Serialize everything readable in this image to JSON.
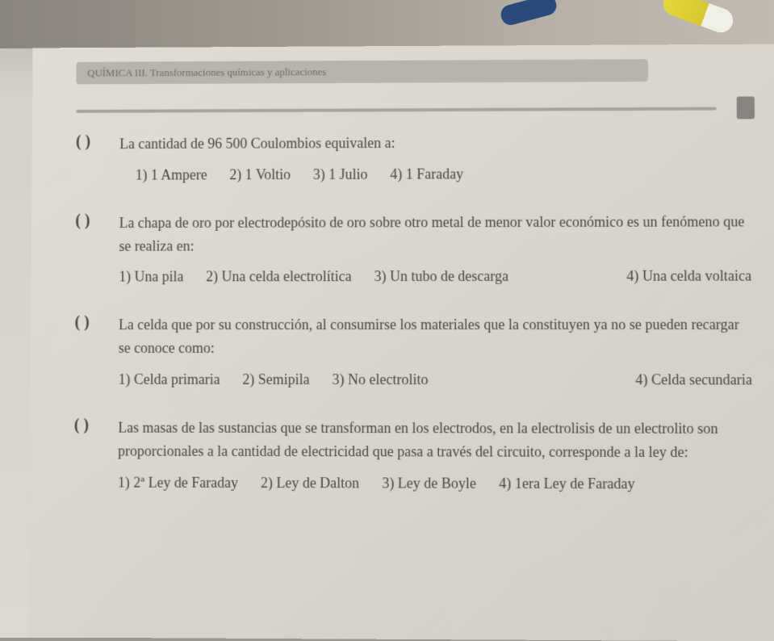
{
  "header": {
    "subject_label": "QUÍMICA III. Transformaciones químicas y aplicaciones"
  },
  "questions": [
    {
      "paren": "(     )",
      "text": "La cantidad de 96 500 Coulombios equivalen a:",
      "options": [
        "1) 1 Ampere",
        "2) 1 Voltio",
        "3) 1 Julio",
        "4) 1 Faraday"
      ]
    },
    {
      "paren": "(     )",
      "text": "La chapa de oro por electrodepósito de oro sobre otro metal de menor valor económico es un fenómeno que se realiza en:",
      "options": [
        "1) Una pila",
        "2) Una celda electrolítica",
        "3) Un tubo de descarga",
        "4) Una celda voltaica"
      ]
    },
    {
      "paren": "(     )",
      "text": "La celda que por su construcción, al consumirse los materiales que la constituyen ya no se pueden recargar se conoce como:",
      "options": [
        "1) Celda primaria",
        "2) Semipila",
        "3) No electrolito",
        "4) Celda secundaria"
      ]
    },
    {
      "paren": "(     )",
      "text": "Las masas de las sustancias que se transforman en los electrodos, en la electrolisis de un electrolito son proporcionales a la cantidad de electricidad que pasa a través del circuito, corresponde a la ley de:",
      "options": [
        "1) 2ª Ley de Faraday",
        "2) Ley de Dalton",
        "3) Ley de Boyle",
        "4) 1era Ley de Faraday"
      ]
    }
  ],
  "styling": {
    "page_bg": "#d8d4ce",
    "text_color": "#4a4844",
    "header_bg": "#b8b4ac",
    "font_family": "Georgia, serif",
    "question_fontsize": 18,
    "header_fontsize": 13
  }
}
